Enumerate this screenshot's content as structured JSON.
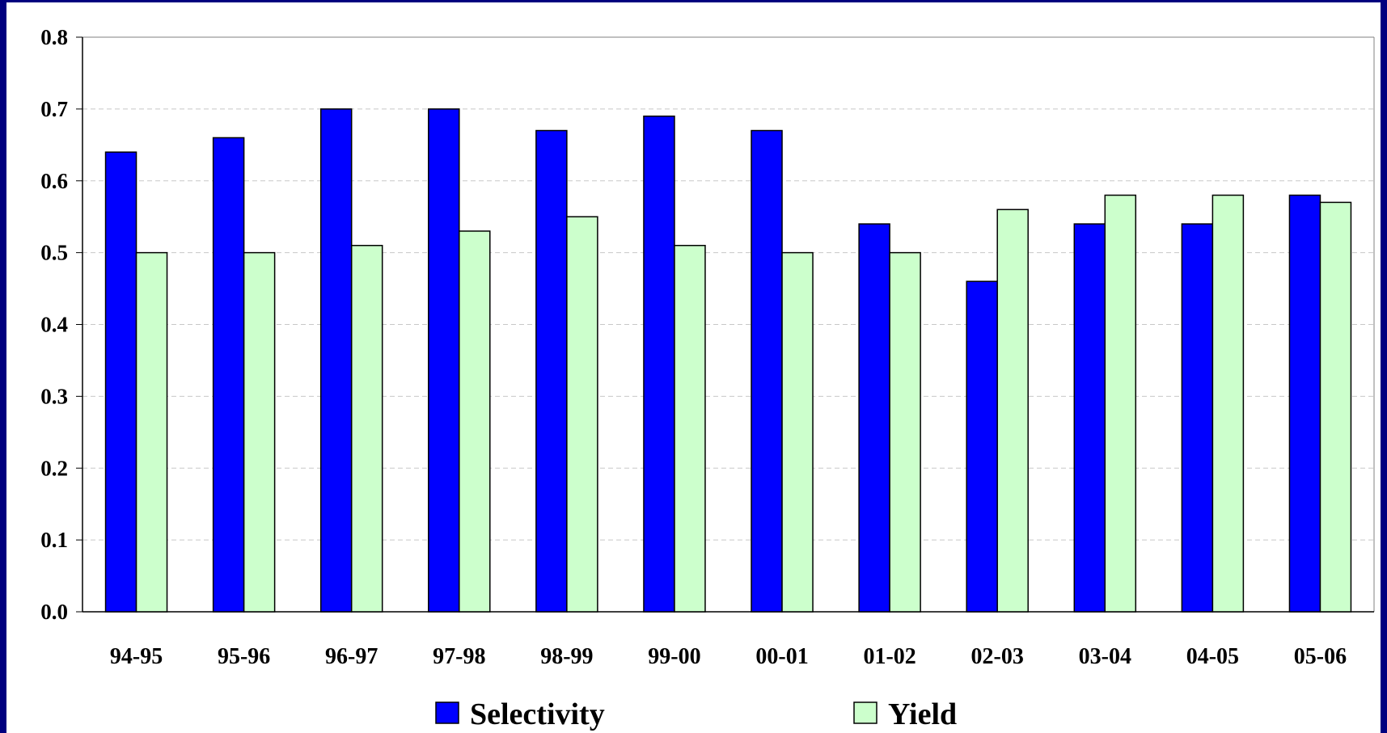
{
  "chart_data": {
    "type": "bar",
    "title": "",
    "xlabel": "",
    "ylabel": "",
    "categories": [
      "94-95",
      "95-96",
      "96-97",
      "97-98",
      "98-99",
      "99-00",
      "00-01",
      "01-02",
      "02-03",
      "03-04",
      "04-05",
      "05-06"
    ],
    "series": [
      {
        "name": "Selectivity",
        "color": "#0000ff",
        "values": [
          0.64,
          0.66,
          0.7,
          0.7,
          0.67,
          0.69,
          0.67,
          0.54,
          0.46,
          0.54,
          0.54,
          0.58
        ]
      },
      {
        "name": "Yield",
        "color": "#ccffcc",
        "values": [
          0.5,
          0.5,
          0.51,
          0.53,
          0.55,
          0.51,
          0.5,
          0.5,
          0.56,
          0.58,
          0.58,
          0.57
        ]
      }
    ],
    "ylim": [
      0,
      0.8
    ],
    "yticks": [
      "0.0",
      "0.1",
      "0.2",
      "0.3",
      "0.4",
      "0.5",
      "0.6",
      "0.7",
      "0.8"
    ],
    "grid": true,
    "legend_position": "bottom"
  }
}
